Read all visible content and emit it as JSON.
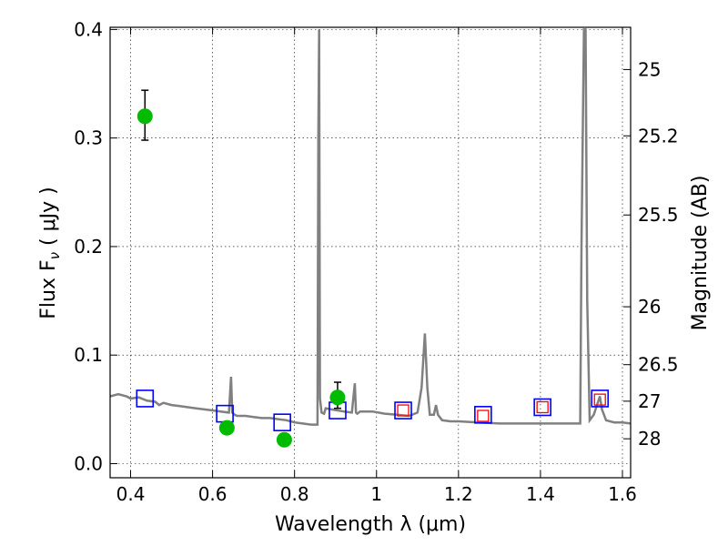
{
  "chart_data": {
    "type": "scatter",
    "xlabel": "Wavelength  λ (μm)",
    "ylabel": "Flux  F",
    "ylabel_sub": "ν",
    "ylabel_unit": "  ( μJy )",
    "y2label": "Magnitude (AB)",
    "xlim": [
      0.35,
      1.62
    ],
    "ylim": [
      -0.013,
      0.402
    ],
    "xticks": [
      0.4,
      0.6,
      0.8,
      1.0,
      1.2,
      1.4,
      1.6
    ],
    "xtick_labels": [
      "0.4",
      "0.6",
      "0.8",
      "1",
      "1.2",
      "1.4",
      "1.6"
    ],
    "yticks": [
      0.0,
      0.1,
      0.2,
      0.3,
      0.4
    ],
    "ytick_labels": [
      "0.0",
      "0.1",
      "0.2",
      "0.3",
      "0.4"
    ],
    "y2ticks": [
      25,
      25.2,
      25.5,
      26,
      26.5,
      27,
      28
    ],
    "y2tick_labels": [
      "25",
      "25.2",
      "25.5",
      "26",
      "26.5",
      "27",
      "28"
    ],
    "grid": true,
    "colors": {
      "model": "#808080",
      "observed": "#00bb00",
      "model_flux": "#0000ff",
      "secondary_flux": "#ff0000"
    },
    "series": [
      {
        "kind": "line",
        "role": "model-spectrum",
        "x": [
          0.35,
          0.37,
          0.39,
          0.4,
          0.42,
          0.44,
          0.46,
          0.47,
          0.48,
          0.5,
          0.52,
          0.54,
          0.56,
          0.58,
          0.6,
          0.62,
          0.64,
          0.645,
          0.648,
          0.651,
          0.654,
          0.66,
          0.68,
          0.7,
          0.72,
          0.74,
          0.76,
          0.78,
          0.8,
          0.82,
          0.84,
          0.856,
          0.858,
          0.86,
          0.862,
          0.866,
          0.872,
          0.876,
          0.89,
          0.905,
          0.92,
          0.94,
          0.947,
          0.95,
          0.953,
          0.96,
          0.99,
          1.02,
          1.05,
          1.08,
          1.1,
          1.11,
          1.118,
          1.124,
          1.13,
          1.14,
          1.145,
          1.15,
          1.16,
          1.18,
          1.2,
          1.25,
          1.3,
          1.35,
          1.4,
          1.45,
          1.497,
          1.5,
          1.506,
          1.51,
          1.514,
          1.52,
          1.53,
          1.545,
          1.55,
          1.56,
          1.58,
          1.6,
          1.62
        ],
        "y": [
          0.062,
          0.064,
          0.062,
          0.06,
          0.061,
          0.058,
          0.057,
          0.054,
          0.056,
          0.054,
          0.053,
          0.052,
          0.051,
          0.05,
          0.049,
          0.048,
          0.047,
          0.08,
          0.047,
          0.046,
          0.045,
          0.044,
          0.044,
          0.043,
          0.042,
          0.042,
          0.041,
          0.04,
          0.038,
          0.037,
          0.036,
          0.036,
          0.3,
          0.4,
          0.06,
          0.047,
          0.046,
          0.051,
          0.05,
          0.049,
          0.048,
          0.047,
          0.074,
          0.047,
          0.046,
          0.048,
          0.048,
          0.046,
          0.045,
          0.044,
          0.047,
          0.07,
          0.12,
          0.07,
          0.045,
          0.045,
          0.054,
          0.045,
          0.04,
          0.039,
          0.039,
          0.038,
          0.037,
          0.037,
          0.037,
          0.037,
          0.037,
          0.2,
          0.4,
          0.4,
          0.15,
          0.04,
          0.045,
          0.062,
          0.05,
          0.04,
          0.038,
          0.038,
          0.037
        ]
      },
      {
        "kind": "errorbar",
        "role": "observed",
        "x": [
          0.435,
          0.635,
          0.775,
          0.905
        ],
        "y": [
          0.32,
          0.033,
          0.022,
          0.061
        ],
        "err_low": [
          0.022,
          0.005,
          0.004,
          0.01
        ],
        "err_high": [
          0.024,
          0.005,
          0.004,
          0.014
        ]
      },
      {
        "kind": "square",
        "role": "model-flux",
        "x": [
          0.435,
          0.63,
          0.77,
          0.905,
          1.065,
          1.26,
          1.405,
          1.545
        ],
        "y": [
          0.06,
          0.046,
          0.038,
          0.049,
          0.049,
          0.045,
          0.052,
          0.06
        ]
      },
      {
        "kind": "square",
        "role": "secondary-flux",
        "x": [
          1.065,
          1.26,
          1.405,
          1.545
        ],
        "y": [
          0.049,
          0.044,
          0.052,
          0.059
        ]
      }
    ]
  }
}
